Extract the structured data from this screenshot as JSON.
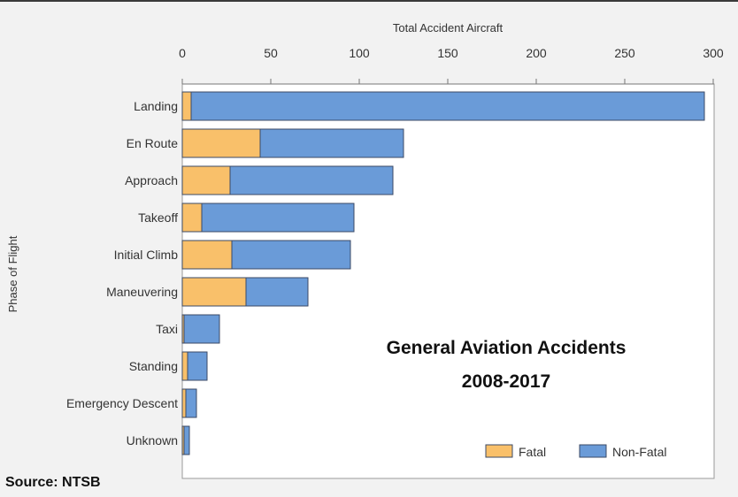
{
  "chart_data": {
    "type": "bar",
    "orientation": "horizontal",
    "stacked": true,
    "x_axis_position": "top",
    "xlabel": "Total Accident Aircraft",
    "ylabel": "Phase of Flight",
    "xlim": [
      0,
      300
    ],
    "x_ticks": [
      "0",
      "50",
      "100",
      "150",
      "200",
      "250",
      "300"
    ],
    "categories": [
      "Landing",
      "En Route",
      "Approach",
      "Takeoff",
      "Initial Climb",
      "Maneuvering",
      "Taxi",
      "Standing",
      "Emergency Descent",
      "Unknown"
    ],
    "series": [
      {
        "name": "Fatal",
        "color": "#f9c06a",
        "values": [
          5,
          44,
          27,
          11,
          28,
          36,
          1,
          3,
          2,
          1
        ]
      },
      {
        "name": "Non-Fatal",
        "color": "#6a9bd8",
        "values": [
          290,
          81,
          92,
          86,
          67,
          35,
          20,
          11,
          6,
          3
        ]
      }
    ],
    "legend": {
      "position": "bottom-right",
      "entries": [
        "Fatal",
        "Non-Fatal"
      ]
    },
    "grid": false
  },
  "annotation": {
    "line1": "General Aviation Accidents",
    "line2": "2008-2017"
  },
  "source": "Source: NTSB"
}
